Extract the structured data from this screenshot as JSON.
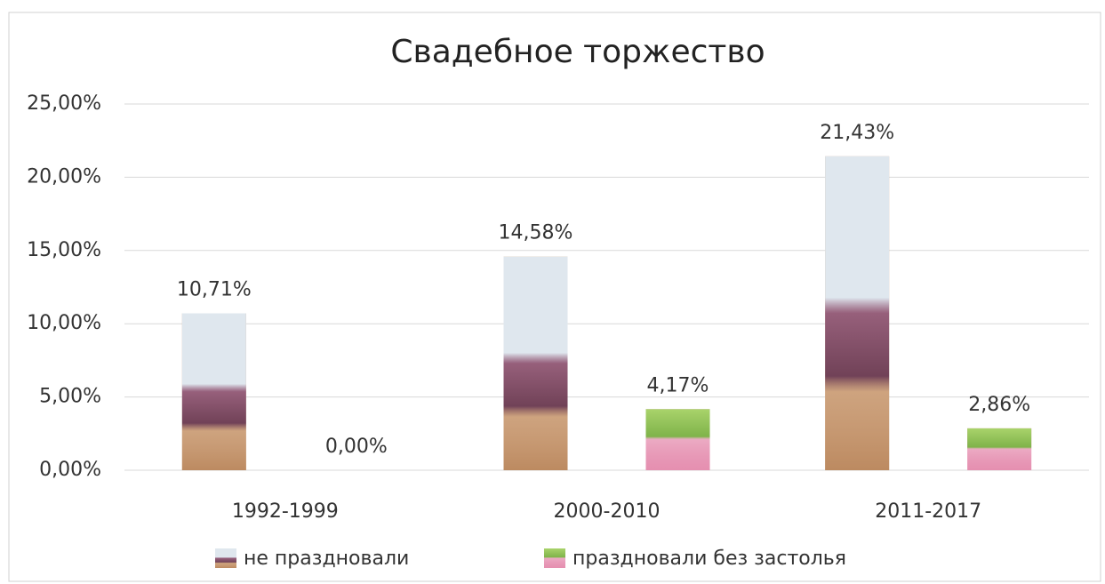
{
  "chart_data": {
    "type": "bar",
    "title": "Свадебное торжество",
    "categories": [
      "1992-1999",
      "2000-2010",
      "2011-2017"
    ],
    "series": [
      {
        "name": "не праздновали",
        "color": "#c9a27e",
        "values": [
          10.71,
          14.58,
          21.43
        ],
        "value_labels": [
          "10,71%",
          "14,58%",
          "21,43%"
        ]
      },
      {
        "name": "праздновали без застолья",
        "color": "#e58fb0",
        "values": [
          0,
          4.17,
          2.86
        ],
        "value_labels": [
          "0,00%",
          "4,17%",
          "2,86%"
        ]
      }
    ],
    "ylim": [
      0,
      25
    ],
    "yticks": [
      {
        "value": 0,
        "label": "0,00%"
      },
      {
        "value": 5,
        "label": "5,00%"
      },
      {
        "value": 10,
        "label": "10,00%"
      },
      {
        "value": 15,
        "label": "15,00%"
      },
      {
        "value": 20,
        "label": "20,00%"
      },
      {
        "value": 25,
        "label": "25,00%"
      }
    ],
    "grid": true,
    "legend": "bottom"
  }
}
